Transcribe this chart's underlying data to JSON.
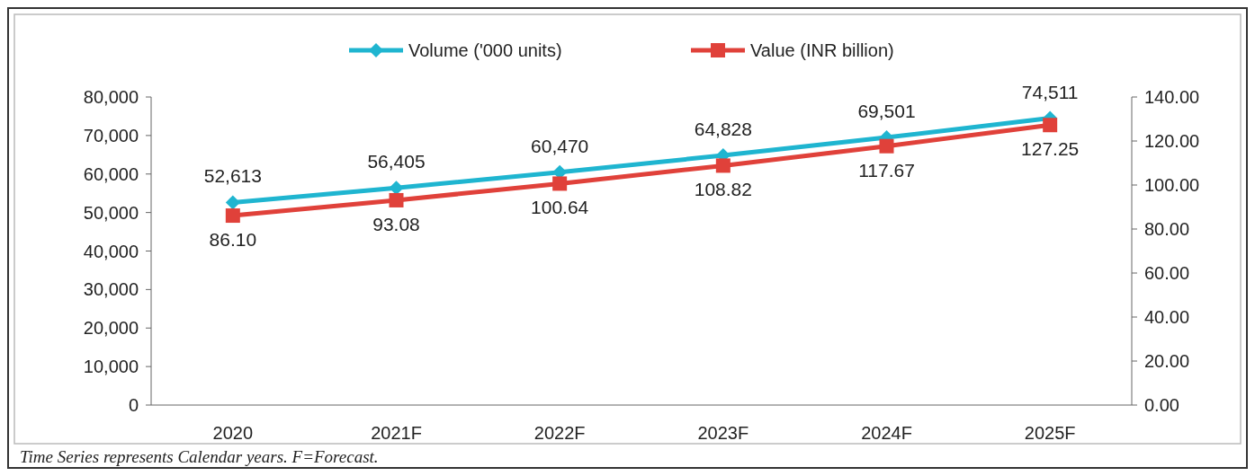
{
  "chart_data": {
    "type": "line",
    "categories": [
      "2020",
      "2021F",
      "2022F",
      "2023F",
      "2024F",
      "2025F"
    ],
    "series": [
      {
        "name": "Volume ('000 units)",
        "color": "#1fb5d0",
        "marker": "diamond",
        "values": [
          52613,
          56405,
          60470,
          64828,
          69501,
          74511
        ],
        "value_labels": [
          "52,613",
          "56,405",
          "60,470",
          "64,828",
          "69,501",
          "74,511"
        ]
      },
      {
        "name": "Value (INR billion)",
        "color": "#e0413a",
        "marker": "square",
        "axis": "y2",
        "values": [
          86.1,
          93.08,
          100.64,
          108.82,
          117.67,
          127.25
        ],
        "value_labels": [
          "86.10",
          "93.08",
          "100.64",
          "108.82",
          "117.67",
          "127.25"
        ]
      }
    ],
    "ylim": [
      0,
      80000
    ],
    "yticks": [
      {
        "value": 0,
        "label": "0"
      },
      {
        "value": 10000,
        "label": "10,000"
      },
      {
        "value": 20000,
        "label": "20,000"
      },
      {
        "value": 30000,
        "label": "30,000"
      },
      {
        "value": 40000,
        "label": "40,000"
      },
      {
        "value": 50000,
        "label": "50,000"
      },
      {
        "value": 60000,
        "label": "60,000"
      },
      {
        "value": 70000,
        "label": "70,000"
      },
      {
        "value": 80000,
        "label": "80,000"
      }
    ],
    "y2lim": [
      0,
      140
    ],
    "y2ticks": [
      {
        "value": 0,
        "label": "0.00"
      },
      {
        "value": 20,
        "label": "20.00"
      },
      {
        "value": 40,
        "label": "40.00"
      },
      {
        "value": 60,
        "label": "60.00"
      },
      {
        "value": 80,
        "label": "80.00"
      },
      {
        "value": 100,
        "label": "100.00"
      },
      {
        "value": 120,
        "label": "120.00"
      },
      {
        "value": 140,
        "label": "140.00"
      }
    ],
    "legend": "top",
    "grid": false,
    "annotations": [
      "Time Series represents Calendar years. F=Forecast."
    ]
  }
}
